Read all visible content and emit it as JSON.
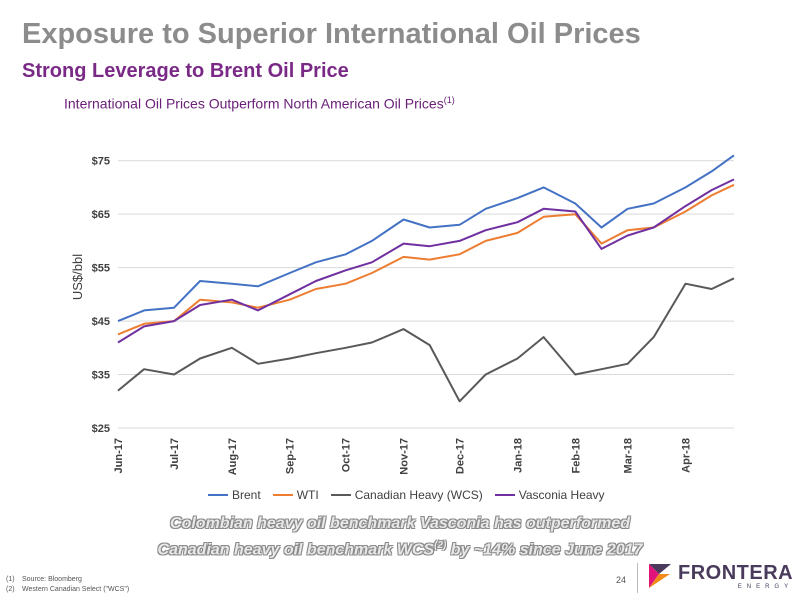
{
  "header": {
    "title": "Exposure to Superior International Oil Prices",
    "subtitle": "Strong Leverage to Brent Oil Price",
    "chart_heading": "International Oil Prices Outperform North American Oil Prices",
    "chart_heading_note": "(1)"
  },
  "chart_data": {
    "type": "line",
    "title": "International Oil Prices Outperform North American Oil Prices",
    "ylabel": "US$/bbl",
    "xlabel": "",
    "ylim": [
      25,
      77
    ],
    "ytick_values": [
      25,
      35,
      45,
      55,
      65,
      75
    ],
    "ytick_labels": [
      "$25",
      "$35",
      "$45",
      "$55",
      "$65",
      "$75"
    ],
    "grid": true,
    "legend_position": "bottom",
    "x": [
      "2017-06-01",
      "2017-06-15",
      "2017-07-01",
      "2017-07-15",
      "2017-08-01",
      "2017-08-15",
      "2017-09-01",
      "2017-09-15",
      "2017-10-01",
      "2017-10-15",
      "2017-11-01",
      "2017-11-15",
      "2017-12-01",
      "2017-12-15",
      "2018-01-01",
      "2018-01-15",
      "2018-02-01",
      "2018-02-15",
      "2018-03-01",
      "2018-03-15",
      "2018-04-01",
      "2018-04-15",
      "2018-04-27"
    ],
    "xtick_values": [
      "2017-06-01",
      "2017-07-01",
      "2017-08-01",
      "2017-09-01",
      "2017-10-01",
      "2017-11-01",
      "2017-12-01",
      "2018-01-01",
      "2018-02-01",
      "2018-03-01",
      "2018-04-01"
    ],
    "xtick_labels": [
      "Jun-17",
      "Jul-17",
      "Aug-17",
      "Sep-17",
      "Oct-17",
      "Nov-17",
      "Dec-17",
      "Jan-18",
      "Feb-18",
      "Mar-18",
      "Apr-18"
    ],
    "series": [
      {
        "name": "Brent",
        "color": "#4472c4",
        "values": [
          45,
          47,
          47.5,
          52.5,
          52,
          51.5,
          54,
          56,
          57.5,
          60,
          64,
          62.5,
          63,
          66,
          68,
          70,
          67,
          62.5,
          66,
          67,
          70,
          73,
          76
        ]
      },
      {
        "name": "WTI",
        "color": "#ed7d31",
        "values": [
          42.5,
          44.5,
          45,
          49,
          48.5,
          47.5,
          49,
          51,
          52,
          54,
          57,
          56.5,
          57.5,
          60,
          61.5,
          64.5,
          65,
          59.5,
          62,
          62.5,
          65.5,
          68.5,
          70.5
        ]
      },
      {
        "name": "Canadian Heavy (WCS)",
        "color": "#595959",
        "values": [
          32,
          36,
          35,
          38,
          40,
          37,
          38,
          39,
          40,
          41,
          43.5,
          40.5,
          30,
          35,
          38,
          42,
          35,
          36,
          37,
          42,
          52,
          51,
          53
        ]
      },
      {
        "name": "Vasconia Heavy",
        "color": "#7030a0",
        "values": [
          41,
          44,
          45,
          48,
          49,
          47,
          50,
          52.5,
          54.5,
          56,
          59.5,
          59,
          60,
          62,
          63.5,
          66,
          65.5,
          58.5,
          61,
          62.5,
          66.5,
          69.5,
          71.5
        ]
      }
    ]
  },
  "callout": {
    "line1": "Colombian heavy oil benchmark Vasconia has outperformed",
    "line2_start": "Canadian heavy oil benchmark WCS",
    "line2_sup": "(2)",
    "line2_end": " by ~14% since June 2017"
  },
  "footnotes": [
    {
      "num": "(1)",
      "text": "Source: Bloomberg"
    },
    {
      "num": "(2)",
      "text": "Western Canadian Select (\"WCS\")"
    }
  ],
  "page_number": "24",
  "logo": {
    "word": "FRONTERA",
    "sub": "ENERGY",
    "colors": [
      "#4a3b5c",
      "#e0147a",
      "#f28a1a"
    ]
  }
}
